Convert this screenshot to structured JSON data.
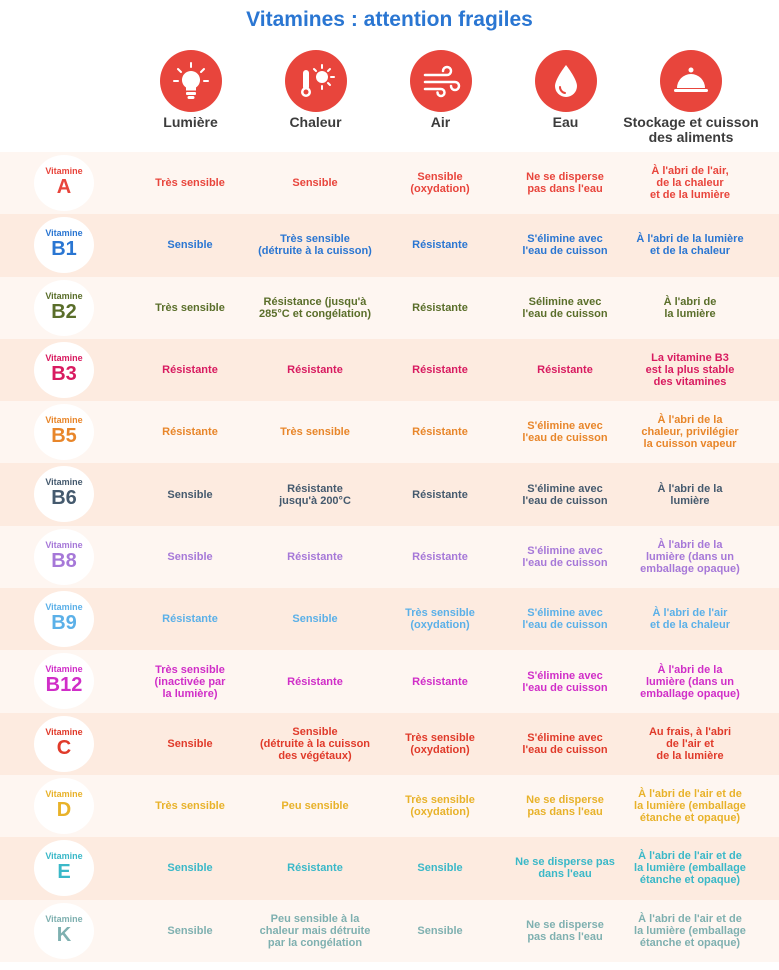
{
  "title": "Vitamines : attention fragiles",
  "colors": {
    "icon_circle": "#e8453c",
    "row_light": "#fef6f1",
    "row_dark": "#fdebe0",
    "title": "#2a76d2"
  },
  "columns": [
    {
      "label": "Lumière",
      "icon": "light-bulb-icon"
    },
    {
      "label": "Chaleur",
      "icon": "thermometer-sun-icon"
    },
    {
      "label": "Air",
      "icon": "wind-icon"
    },
    {
      "label": "Eau",
      "icon": "water-drop-icon"
    },
    {
      "label": "Stockage et cuisson\ndes aliments",
      "icon": "food-cloche-icon"
    }
  ],
  "vitamin_word": "Vitamine",
  "rows": [
    {
      "letter": "A",
      "color": "#e8453c",
      "cells": [
        "Très sensible",
        "Sensible",
        "Sensible\n(oxydation)",
        "Ne se disperse\npas dans l'eau",
        "À l'abri de l'air,\nde la chaleur\net de la lumière"
      ]
    },
    {
      "letter": "B1",
      "color": "#2a76d2",
      "cells": [
        "Sensible",
        "Très sensible\n(détruite à la cuisson)",
        "Résistante",
        "S'élimine avec\nl'eau de cuisson",
        "À l'abri de la lumière\net de la chaleur"
      ]
    },
    {
      "letter": "B2",
      "color": "#5a6e2a",
      "cells": [
        "Très sensible",
        "Résistance (jusqu'à\n285°C et congélation)",
        "Résistante",
        "Sélimine avec\nl'eau de cuisson",
        "À l'abri de\nla lumière"
      ]
    },
    {
      "letter": "B3",
      "color": "#d81b60",
      "cells": [
        "Résistante",
        "Résistante",
        "Résistante",
        "Résistante",
        "La vitamine B3\nest la plus stable\ndes vitamines"
      ]
    },
    {
      "letter": "B5",
      "color": "#e8862a",
      "cells": [
        "Résistante",
        "Très sensible",
        "Résistante",
        "S'élimine avec\nl'eau de cuisson",
        "À l'abri de la\nchaleur, privilégier\nla cuisson vapeur"
      ]
    },
    {
      "letter": "B6",
      "color": "#455a6e",
      "cells": [
        "Sensible",
        "Résistante\njusqu'à 200°C",
        "Résistante",
        "S'élimine avec\nl'eau de cuisson",
        "À l'abri de la\nlumière"
      ]
    },
    {
      "letter": "B8",
      "color": "#a678d8",
      "cells": [
        "Sensible",
        "Résistante",
        "Résistante",
        "S'élimine avec\nl'eau de cuisson",
        "À l'abri de la\nlumière (dans un\nemballage opaque)"
      ]
    },
    {
      "letter": "B9",
      "color": "#5bb0e8",
      "cells": [
        "Résistante",
        "Sensible",
        "Très sensible\n(oxydation)",
        "S'élimine avec\nl'eau de cuisson",
        "À l'abri de l'air\net de la chaleur"
      ]
    },
    {
      "letter": "B12",
      "color": "#d02ec8",
      "cells": [
        "Très sensible\n(inactivée par\nla lumière)",
        "Résistante",
        "Résistante",
        "S'élimine avec\nl'eau de cuisson",
        "À l'abri de la\nlumière (dans un\nemballage opaque)"
      ]
    },
    {
      "letter": "C",
      "color": "#e03a2a",
      "cells": [
        "Sensible",
        "Sensible\n(détruite à la cuisson\ndes végétaux)",
        "Très sensible\n(oxydation)",
        "S'élimine avec\nl'eau de cuisson",
        "Au frais, à l'abri\nde l'air et\nde la lumière"
      ]
    },
    {
      "letter": "D",
      "color": "#e8b22a",
      "cells": [
        "Très sensible",
        "Peu sensible",
        "Très sensible\n(oxydation)",
        "Ne se disperse\npas dans l'eau",
        "À l'abri de l'air et de\nla lumière (emballage\nétanche et opaque)"
      ]
    },
    {
      "letter": "E",
      "color": "#3ab8c8",
      "cells": [
        "Sensible",
        "Résistante",
        "Sensible",
        "Ne se disperse pas\ndans l'eau",
        "À l'abri de l'air et de\nla lumière (emballage\nétanche et opaque)"
      ]
    },
    {
      "letter": "K",
      "color": "#7fb0b0",
      "cells": [
        "Sensible",
        "Peu sensible à la\nchaleur mais détruite\npar la congélation",
        "Sensible",
        "Ne se disperse\npas dans l'eau",
        "À l'abri de l'air et de\nla lumière (emballage\nétanche et opaque)"
      ]
    }
  ]
}
